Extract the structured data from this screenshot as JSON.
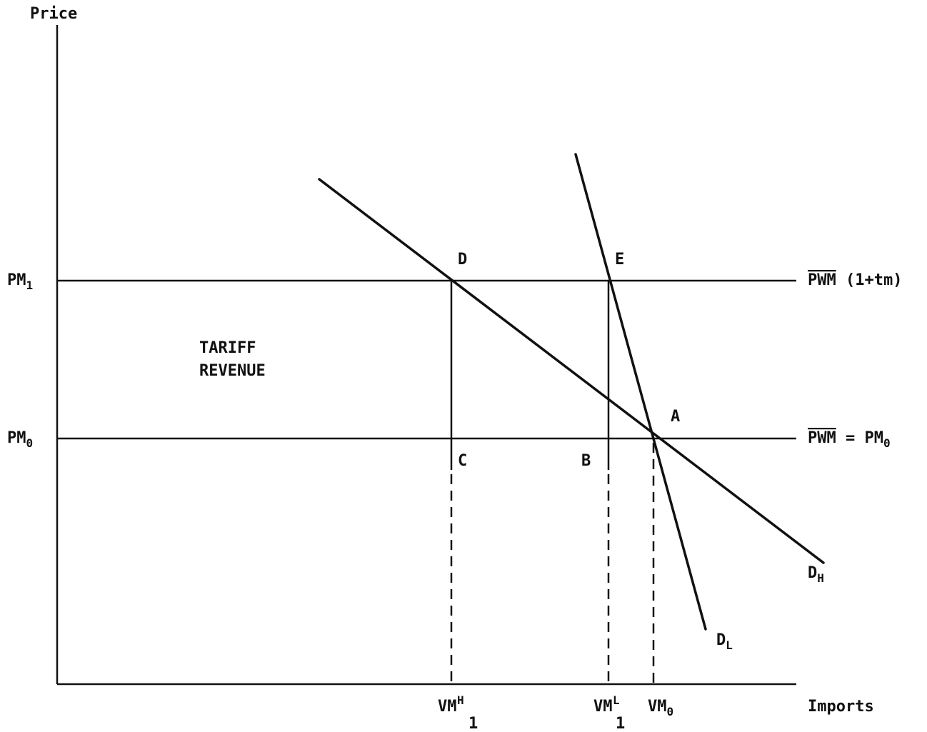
{
  "axes": {
    "y_label": "Price",
    "x_label": "Imports"
  },
  "price_levels": {
    "pm1": {
      "main": "PM",
      "sub": "1"
    },
    "pm0": {
      "main": "PM",
      "sub": "0"
    }
  },
  "line_labels": {
    "pwm_tariff": {
      "overlined": "PWM",
      "rest": " (1+tm)"
    },
    "pwm_world": {
      "overlined": "PWM",
      "rest": " = PM",
      "sub": "0"
    }
  },
  "curves": {
    "dh": {
      "main": "D",
      "sub": "H"
    },
    "dl": {
      "main": "D",
      "sub": "L"
    }
  },
  "points": {
    "a": "A",
    "b": "B",
    "c": "C",
    "d": "D",
    "e": "E"
  },
  "region": {
    "line1": "TARIFF",
    "line2": "REVENUE"
  },
  "quantities": {
    "vm1h": {
      "main": "VM",
      "sup": "H",
      "sub": "1"
    },
    "vm1l": {
      "main": "VM",
      "sup": "L",
      "sub": "1"
    },
    "vm0": {
      "main": "VM",
      "sub": "0"
    }
  }
}
